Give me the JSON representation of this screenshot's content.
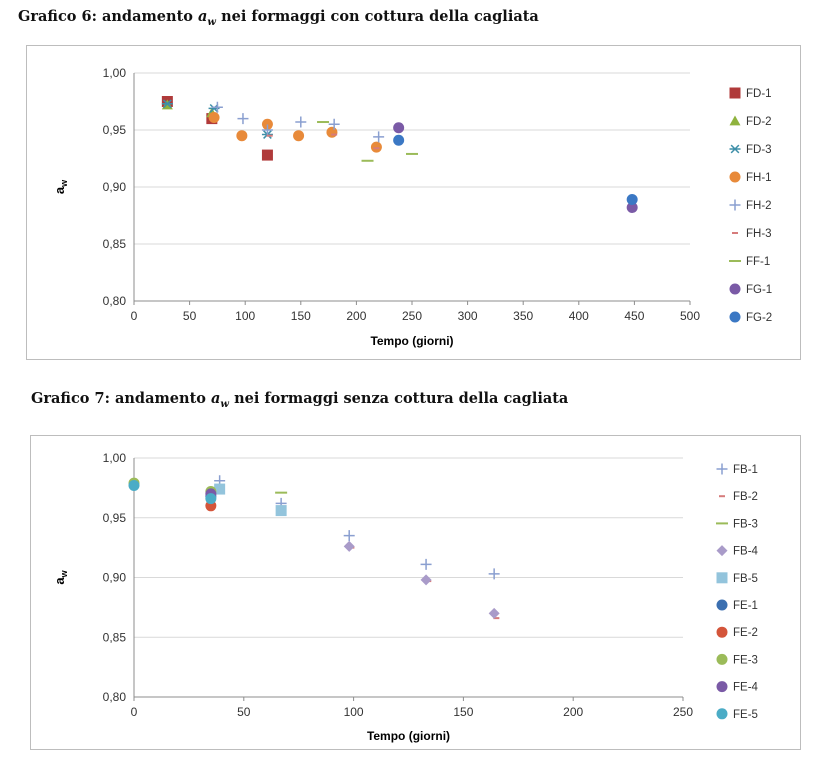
{
  "chart_data": [
    {
      "type": "scatter",
      "title_prefix": "Grafico 6: andamento ",
      "title_var": "a",
      "title_sub": "w",
      "title_suffix": " nei formaggi con cottura della cagliata",
      "xlabel": "Tempo (giorni)",
      "ylabel_main": "a",
      "ylabel_sub": "w",
      "xlim": [
        0,
        500
      ],
      "xticks": [
        "0",
        "50",
        "100",
        "150",
        "200",
        "250",
        "300",
        "350",
        "400",
        "450",
        "500"
      ],
      "ylim": [
        0.8,
        1.0
      ],
      "yticks": [
        "0,80",
        "0,85",
        "0,90",
        "0,95",
        "1,00"
      ],
      "grid": "horizontal",
      "legend": "right",
      "series": [
        {
          "name": "FD-1",
          "marker": "square",
          "color": "#b03a3a",
          "points": [
            [
              30,
              0.975
            ],
            [
              70,
              0.96
            ],
            [
              120,
              0.928
            ]
          ]
        },
        {
          "name": "FD-2",
          "marker": "triangle",
          "color": "#8fb33e",
          "points": [
            [
              30,
              0.972
            ],
            [
              70,
              0.965
            ]
          ]
        },
        {
          "name": "FD-3",
          "marker": "star",
          "color": "#3e8fa8",
          "points": [
            [
              30,
              0.973
            ],
            [
              72,
              0.969
            ],
            [
              120,
              0.946
            ]
          ]
        },
        {
          "name": "FH-1",
          "marker": "circle",
          "color": "#e88a3a",
          "points": [
            [
              72,
              0.961
            ],
            [
              97,
              0.945
            ],
            [
              120,
              0.955
            ],
            [
              148,
              0.945
            ],
            [
              178,
              0.948
            ],
            [
              218,
              0.935
            ]
          ]
        },
        {
          "name": "FH-2",
          "marker": "plus",
          "color": "#8a9fd0",
          "points": [
            [
              75,
              0.97
            ],
            [
              98,
              0.96
            ],
            [
              120,
              0.95
            ],
            [
              150,
              0.957
            ],
            [
              180,
              0.955
            ],
            [
              220,
              0.944
            ]
          ]
        },
        {
          "name": "FH-3",
          "marker": "dash",
          "color": "#d67b7b",
          "points": [
            [
              122,
              0.945
            ],
            [
              180,
              0.946
            ],
            [
              218,
              0.934
            ]
          ]
        },
        {
          "name": "FF-1",
          "marker": "hline",
          "color": "#9bbb59",
          "points": [
            [
              170,
              0.957
            ],
            [
              210,
              0.923
            ],
            [
              250,
              0.929
            ]
          ]
        },
        {
          "name": "FG-1",
          "marker": "circle",
          "color": "#7a5aa6",
          "points": [
            [
              238,
              0.952
            ],
            [
              448,
              0.882
            ]
          ]
        },
        {
          "name": "FG-2",
          "marker": "circle",
          "color": "#3b78c4",
          "points": [
            [
              238,
              0.941
            ],
            [
              448,
              0.889
            ]
          ]
        }
      ]
    },
    {
      "type": "scatter",
      "title_prefix": "Grafico 7: andamento ",
      "title_var": "a",
      "title_sub": "w",
      "title_suffix": " nei formaggi senza cottura della cagliata",
      "xlabel": "Tempo (giorni)",
      "ylabel_main": "a",
      "ylabel_sub": "w",
      "xlim": [
        0,
        250
      ],
      "xticks": [
        "0",
        "50",
        "100",
        "150",
        "200",
        "250"
      ],
      "ylim": [
        0.8,
        1.0
      ],
      "yticks": [
        "0,80",
        "0,85",
        "0,90",
        "0,95",
        "1,00"
      ],
      "grid": "horizontal",
      "legend": "right",
      "series": [
        {
          "name": "FB-1",
          "marker": "plus",
          "color": "#8a9fd0",
          "points": [
            [
              39,
              0.981
            ],
            [
              67,
              0.962
            ],
            [
              98,
              0.935
            ],
            [
              133,
              0.911
            ],
            [
              164,
              0.903
            ]
          ]
        },
        {
          "name": "FB-2",
          "marker": "dash",
          "color": "#d67b7b",
          "points": [
            [
              39,
              0.972
            ],
            [
              99,
              0.925
            ],
            [
              134,
              0.897
            ],
            [
              165,
              0.866
            ]
          ]
        },
        {
          "name": "FB-3",
          "marker": "hline",
          "color": "#9bbb59",
          "points": [
            [
              67,
              0.971
            ]
          ]
        },
        {
          "name": "FB-4",
          "marker": "diamond",
          "color": "#a99bc9",
          "points": [
            [
              98,
              0.926
            ],
            [
              133,
              0.898
            ],
            [
              164,
              0.87
            ]
          ]
        },
        {
          "name": "FB-5",
          "marker": "square",
          "color": "#93c4dc",
          "points": [
            [
              39,
              0.974
            ],
            [
              67,
              0.956
            ]
          ]
        },
        {
          "name": "FE-1",
          "marker": "circle",
          "color": "#3b6fb0",
          "points": [
            [
              35,
              0.968
            ]
          ]
        },
        {
          "name": "FE-2",
          "marker": "circle",
          "color": "#d4553a",
          "points": [
            [
              35,
              0.96
            ]
          ]
        },
        {
          "name": "FE-3",
          "marker": "circle",
          "color": "#9bbb59",
          "points": [
            [
              0,
              0.979
            ],
            [
              35,
              0.972
            ]
          ]
        },
        {
          "name": "FE-4",
          "marker": "circle",
          "color": "#7a5aa6",
          "points": [
            [
              35,
              0.97
            ]
          ]
        },
        {
          "name": "FE-5",
          "marker": "circle",
          "color": "#4bacc6",
          "points": [
            [
              0,
              0.977
            ],
            [
              35,
              0.966
            ]
          ]
        }
      ]
    }
  ]
}
